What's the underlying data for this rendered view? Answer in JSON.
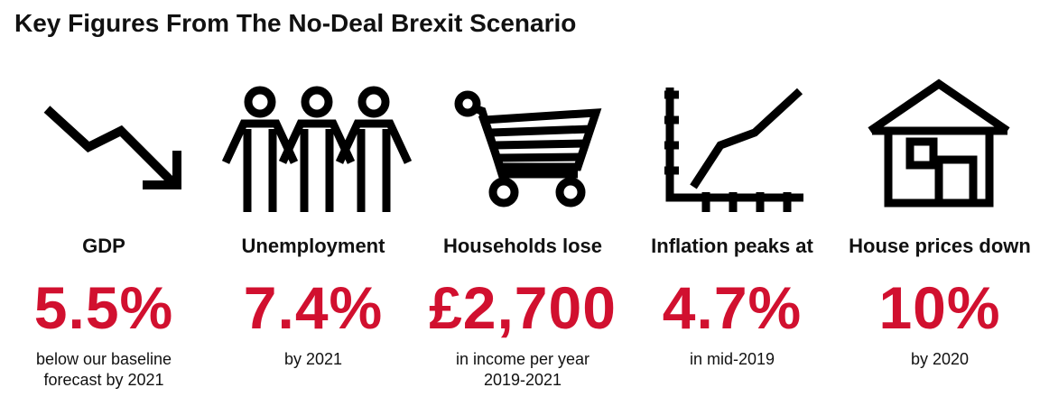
{
  "title": "Key Figures From The No-Deal Brexit Scenario",
  "accent_color": "#d1102f",
  "figures": [
    {
      "icon": "downward-trend-arrow-icon",
      "label": "GDP",
      "value": "5.5%",
      "desc": "below our baseline\nforecast by 2021"
    },
    {
      "icon": "people-group-icon",
      "label": "Unemployment",
      "value": "7.4%",
      "desc": "by 2021"
    },
    {
      "icon": "shopping-cart-icon",
      "label": "Households lose",
      "value": "£2,700",
      "desc": "in income per year\n2019-2021"
    },
    {
      "icon": "rising-line-chart-icon",
      "label": "Inflation peaks at",
      "value": "4.7%",
      "desc": "in mid-2019"
    },
    {
      "icon": "house-icon",
      "label": "House prices down",
      "value": "10%",
      "desc": "by 2020"
    }
  ]
}
